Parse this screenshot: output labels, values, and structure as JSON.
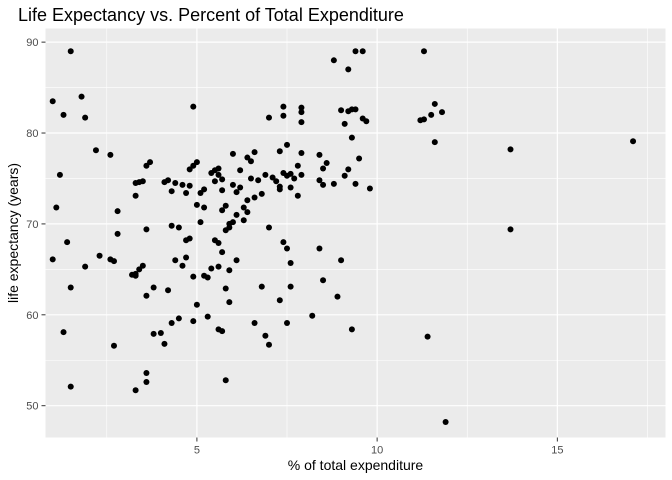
{
  "chart_data": {
    "type": "scatter",
    "title": "Life Expectancy vs. Percent of Total Expenditure",
    "xlabel": "% of total expenditure",
    "ylabel": "life expectancy (years)",
    "xlim": [
      0.8,
      18.0
    ],
    "ylim": [
      46.5,
      91.5
    ],
    "x_ticks": [
      5,
      10,
      15
    ],
    "x_tick_labels": [
      "5",
      "10",
      "15"
    ],
    "y_ticks": [
      50,
      60,
      70,
      80,
      90
    ],
    "y_tick_labels": [
      "50",
      "60",
      "70",
      "80",
      "90"
    ],
    "grid": true,
    "legend": "none",
    "colors": {
      "panel": "#ebebeb",
      "grid": "#ffffff",
      "point": "#000000"
    },
    "points": [
      [
        1.5,
        89.0
      ],
      [
        1.0,
        83.5
      ],
      [
        1.3,
        82.0
      ],
      [
        1.8,
        84.0
      ],
      [
        1.9,
        81.7
      ],
      [
        2.2,
        78.1
      ],
      [
        1.2,
        75.4
      ],
      [
        1.1,
        71.8
      ],
      [
        1.4,
        68.0
      ],
      [
        1.0,
        66.1
      ],
      [
        1.5,
        63.0
      ],
      [
        1.3,
        58.1
      ],
      [
        1.9,
        65.3
      ],
      [
        2.3,
        66.5
      ],
      [
        1.5,
        52.1
      ],
      [
        2.6,
        77.6
      ],
      [
        2.6,
        66.1
      ],
      [
        2.7,
        65.9
      ],
      [
        2.8,
        71.4
      ],
      [
        2.8,
        68.9
      ],
      [
        2.7,
        56.6
      ],
      [
        3.3,
        74.5
      ],
      [
        3.4,
        74.6
      ],
      [
        3.5,
        74.7
      ],
      [
        3.6,
        76.4
      ],
      [
        3.7,
        76.8
      ],
      [
        3.3,
        73.1
      ],
      [
        3.6,
        69.4
      ],
      [
        3.2,
        64.4
      ],
      [
        3.3,
        64.5
      ],
      [
        3.4,
        65.0
      ],
      [
        3.5,
        65.4
      ],
      [
        3.3,
        64.3
      ],
      [
        3.6,
        62.1
      ],
      [
        3.8,
        63.0
      ],
      [
        3.8,
        57.9
      ],
      [
        3.6,
        53.6
      ],
      [
        3.6,
        52.6
      ],
      [
        3.3,
        51.7
      ],
      [
        4.1,
        74.6
      ],
      [
        4.2,
        74.8
      ],
      [
        4.3,
        73.6
      ],
      [
        4.4,
        74.5
      ],
      [
        4.6,
        74.3
      ],
      [
        4.7,
        73.4
      ],
      [
        4.8,
        74.2
      ],
      [
        4.3,
        69.8
      ],
      [
        4.5,
        69.6
      ],
      [
        4.7,
        68.2
      ],
      [
        4.8,
        68.4
      ],
      [
        4.7,
        66.3
      ],
      [
        4.4,
        66.0
      ],
      [
        4.6,
        65.4
      ],
      [
        4.9,
        64.2
      ],
      [
        4.2,
        62.7
      ],
      [
        4.0,
        58.0
      ],
      [
        4.3,
        59.1
      ],
      [
        4.5,
        59.6
      ],
      [
        4.9,
        59.3
      ],
      [
        4.1,
        56.8
      ],
      [
        4.8,
        76.0
      ],
      [
        4.9,
        76.4
      ],
      [
        5.0,
        76.8
      ],
      [
        5.0,
        72.1
      ],
      [
        5.1,
        73.4
      ],
      [
        5.2,
        73.8
      ],
      [
        5.2,
        71.8
      ],
      [
        5.1,
        70.2
      ],
      [
        5.2,
        64.3
      ],
      [
        5.0,
        61.1
      ],
      [
        5.3,
        64.1
      ],
      [
        5.4,
        65.1
      ],
      [
        5.3,
        59.8
      ],
      [
        4.9,
        82.9
      ],
      [
        5.4,
        75.6
      ],
      [
        5.5,
        75.9
      ],
      [
        5.6,
        76.1
      ],
      [
        5.6,
        75.4
      ],
      [
        5.7,
        74.9
      ],
      [
        5.5,
        74.7
      ],
      [
        5.7,
        73.7
      ],
      [
        5.8,
        72.0
      ],
      [
        5.7,
        71.5
      ],
      [
        5.9,
        70.0
      ],
      [
        5.9,
        69.6
      ],
      [
        5.8,
        69.3
      ],
      [
        5.5,
        68.2
      ],
      [
        5.6,
        67.9
      ],
      [
        5.7,
        66.9
      ],
      [
        5.6,
        65.3
      ],
      [
        5.9,
        64.9
      ],
      [
        5.8,
        62.9
      ],
      [
        5.9,
        61.4
      ],
      [
        5.6,
        58.4
      ],
      [
        5.7,
        58.2
      ],
      [
        5.8,
        52.8
      ],
      [
        6.0,
        74.3
      ],
      [
        6.1,
        73.5
      ],
      [
        6.2,
        74.0
      ],
      [
        6.3,
        71.8
      ],
      [
        6.4,
        72.6
      ],
      [
        6.2,
        75.9
      ],
      [
        6.5,
        76.9
      ],
      [
        6.4,
        77.3
      ],
      [
        6.6,
        77.9
      ],
      [
        6.5,
        75.0
      ],
      [
        6.7,
        74.8
      ],
      [
        6.8,
        73.3
      ],
      [
        6.6,
        72.9
      ],
      [
        6.4,
        71.3
      ],
      [
        6.1,
        71.0
      ],
      [
        6.0,
        77.7
      ],
      [
        6.0,
        70.2
      ],
      [
        6.3,
        70.4
      ],
      [
        6.1,
        66.0
      ],
      [
        6.6,
        59.1
      ],
      [
        6.8,
        63.1
      ],
      [
        6.9,
        57.7
      ],
      [
        7.0,
        56.7
      ],
      [
        6.9,
        75.4
      ],
      [
        7.0,
        69.6
      ],
      [
        7.1,
        75.1
      ],
      [
        7.2,
        74.7
      ],
      [
        7.3,
        74.1
      ],
      [
        7.3,
        73.8
      ],
      [
        7.5,
        75.3
      ],
      [
        7.6,
        75.5
      ],
      [
        7.4,
        75.6
      ],
      [
        7.3,
        78.0
      ],
      [
        7.5,
        78.7
      ],
      [
        7.7,
        75.0
      ],
      [
        7.6,
        74.0
      ],
      [
        7.8,
        73.1
      ],
      [
        7.0,
        81.7
      ],
      [
        7.4,
        82.9
      ],
      [
        7.4,
        81.9
      ],
      [
        7.9,
        82.8
      ],
      [
        7.9,
        82.3
      ],
      [
        7.9,
        81.2
      ],
      [
        7.4,
        68.0
      ],
      [
        7.5,
        67.3
      ],
      [
        7.6,
        65.7
      ],
      [
        7.3,
        61.6
      ],
      [
        7.6,
        63.1
      ],
      [
        7.5,
        59.1
      ],
      [
        7.9,
        77.8
      ],
      [
        7.8,
        76.4
      ],
      [
        7.9,
        75.4
      ],
      [
        8.2,
        59.9
      ],
      [
        8.4,
        77.6
      ],
      [
        8.5,
        74.3
      ],
      [
        8.4,
        74.8
      ],
      [
        8.5,
        76.1
      ],
      [
        8.6,
        76.7
      ],
      [
        8.8,
        74.4
      ],
      [
        8.4,
        67.3
      ],
      [
        8.5,
        63.8
      ],
      [
        8.9,
        62.0
      ],
      [
        9.0,
        66.0
      ],
      [
        8.8,
        88.0
      ],
      [
        9.2,
        87.0
      ],
      [
        9.4,
        89.0
      ],
      [
        9.6,
        89.0
      ],
      [
        9.0,
        82.5
      ],
      [
        9.2,
        82.4
      ],
      [
        9.3,
        82.6
      ],
      [
        9.4,
        82.6
      ],
      [
        9.6,
        81.6
      ],
      [
        9.7,
        81.3
      ],
      [
        9.1,
        81.0
      ],
      [
        9.3,
        79.5
      ],
      [
        9.5,
        77.2
      ],
      [
        9.2,
        76.0
      ],
      [
        9.1,
        75.3
      ],
      [
        9.4,
        74.4
      ],
      [
        9.8,
        73.9
      ],
      [
        9.3,
        58.4
      ],
      [
        11.3,
        89.0
      ],
      [
        11.6,
        83.2
      ],
      [
        11.8,
        82.3
      ],
      [
        11.5,
        82.0
      ],
      [
        11.3,
        81.5
      ],
      [
        11.2,
        81.4
      ],
      [
        11.6,
        79.0
      ],
      [
        11.4,
        57.6
      ],
      [
        11.9,
        48.2
      ],
      [
        13.7,
        78.2
      ],
      [
        13.7,
        69.4
      ],
      [
        17.1,
        79.1
      ]
    ]
  }
}
